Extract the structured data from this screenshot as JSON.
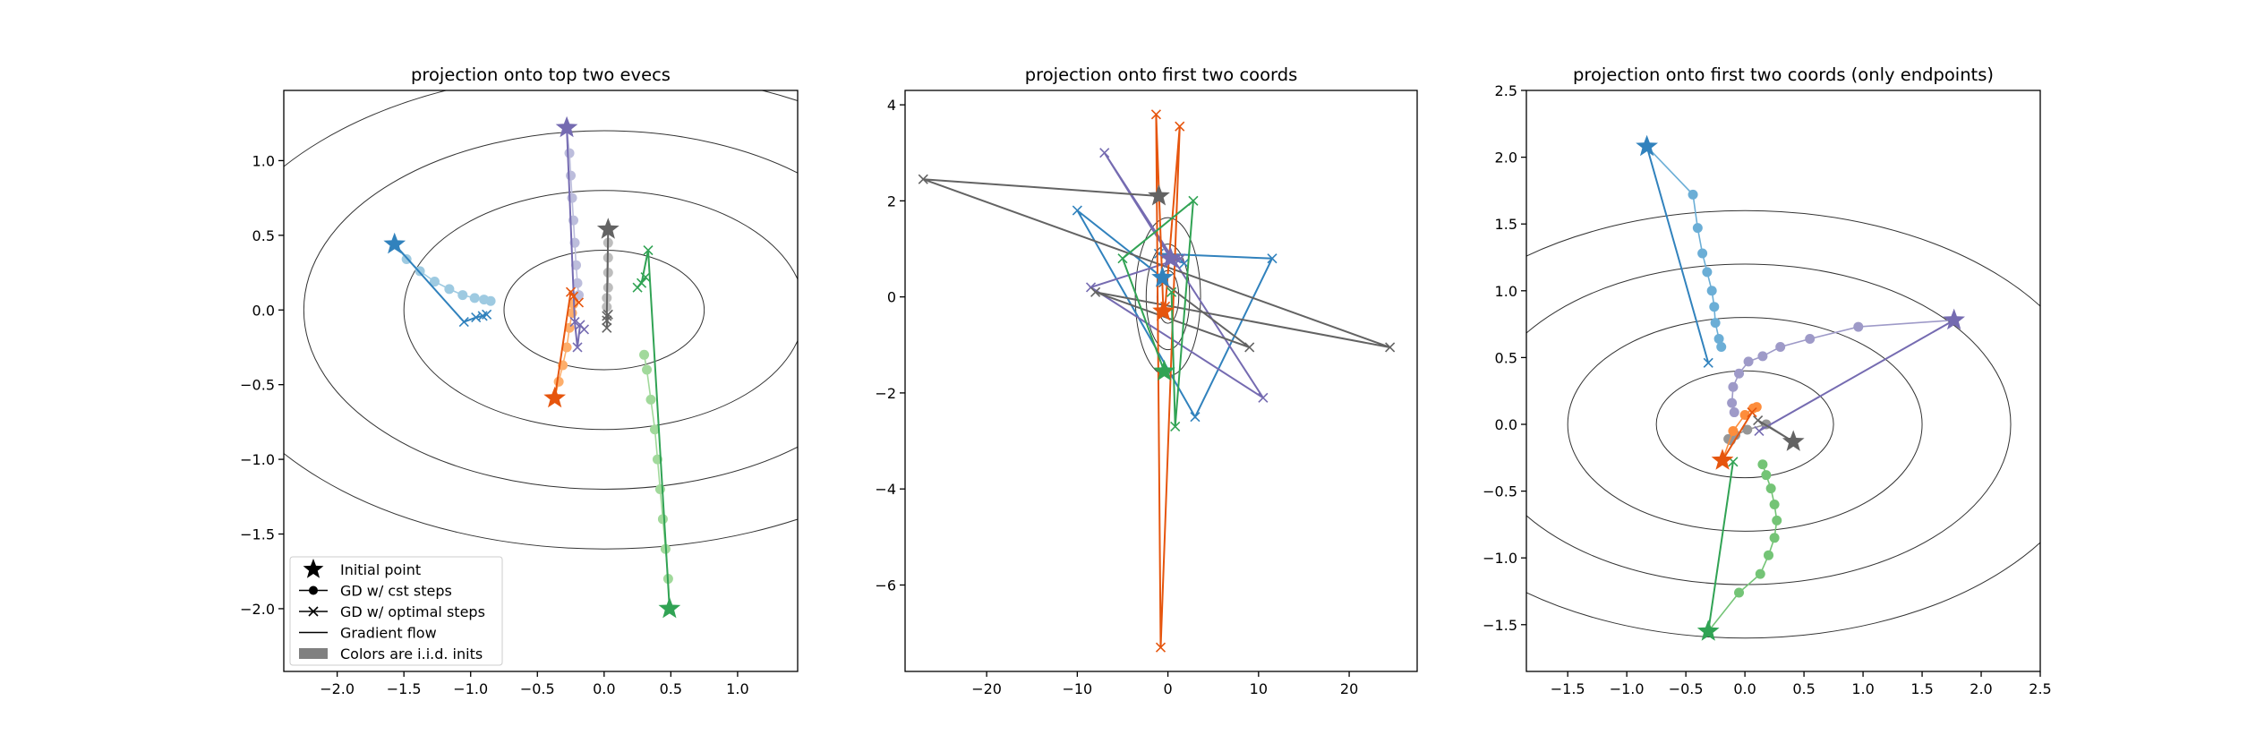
{
  "chart_data": [
    {
      "type": "line",
      "title": "projection onto top two evecs",
      "xlim": [
        -2.4,
        1.45
      ],
      "ylim": [
        -2.42,
        1.47
      ],
      "xticks": [
        -2.0,
        -1.5,
        -1.0,
        -0.5,
        0.0,
        0.5,
        1.0
      ],
      "xtick_labels": [
        "−2.0",
        "−1.5",
        "−1.0",
        "−0.5",
        "0.0",
        "0.5",
        "1.0"
      ],
      "yticks": [
        -2.0,
        -1.5,
        -1.0,
        -0.5,
        0.0,
        0.5,
        1.0
      ],
      "ytick_labels": [
        "−2.0",
        "−1.5",
        "−1.0",
        "−0.5",
        "0.0",
        "0.5",
        "1.0"
      ],
      "contours": [
        [
          0.75,
          0.4
        ],
        [
          1.5,
          0.8
        ],
        [
          2.25,
          1.2
        ],
        [
          3.0,
          1.6
        ]
      ],
      "legend": {
        "position": "lower-left",
        "entries": [
          {
            "label": "Initial point",
            "marker": "star"
          },
          {
            "label": "GD w/ cst steps",
            "marker": "circle-line"
          },
          {
            "label": "GD w/ optimal steps",
            "marker": "x-line"
          },
          {
            "label": "Gradient flow",
            "marker": "line"
          },
          {
            "label": "Colors are i.i.d. inits",
            "marker": "patch"
          }
        ]
      },
      "series": [
        {
          "color_dark": "#3182bd",
          "color_light": "#9ecae1",
          "start": [
            -1.57,
            0.44
          ],
          "cst": [
            [
              -1.57,
              0.44
            ],
            [
              -1.48,
              0.34
            ],
            [
              -1.38,
              0.26
            ],
            [
              -1.27,
              0.19
            ],
            [
              -1.16,
              0.14
            ],
            [
              -1.06,
              0.1
            ],
            [
              -0.97,
              0.08
            ],
            [
              -0.9,
              0.07
            ],
            [
              -0.85,
              0.06
            ]
          ],
          "opt": [
            [
              -1.57,
              0.44
            ],
            [
              -1.05,
              -0.08
            ],
            [
              -0.96,
              -0.05
            ],
            [
              -0.91,
              -0.04
            ],
            [
              -0.88,
              -0.03
            ]
          ]
        },
        {
          "color_dark": "#756bb1",
          "color_light": "#bcbddc",
          "start": [
            -0.28,
            1.22
          ],
          "cst": [
            [
              -0.28,
              1.22
            ],
            [
              -0.26,
              1.05
            ],
            [
              -0.25,
              0.9
            ],
            [
              -0.24,
              0.75
            ],
            [
              -0.23,
              0.6
            ],
            [
              -0.22,
              0.45
            ],
            [
              -0.21,
              0.3
            ],
            [
              -0.2,
              0.18
            ],
            [
              -0.19,
              0.1
            ]
          ],
          "opt": [
            [
              -0.28,
              1.22
            ],
            [
              -0.22,
              -0.08
            ],
            [
              -0.2,
              -0.25
            ],
            [
              -0.18,
              -0.1
            ],
            [
              -0.15,
              -0.13
            ]
          ]
        },
        {
          "color_dark": "#636363",
          "color_light": "#bdbdbd",
          "start": [
            0.03,
            0.54
          ],
          "cst": [
            [
              0.03,
              0.54
            ],
            [
              0.03,
              0.45
            ],
            [
              0.03,
              0.35
            ],
            [
              0.03,
              0.25
            ],
            [
              0.03,
              0.15
            ],
            [
              0.02,
              0.08
            ],
            [
              0.02,
              0.02
            ]
          ],
          "opt": [
            [
              0.03,
              0.54
            ],
            [
              0.02,
              -0.04
            ],
            [
              0.02,
              -0.12
            ],
            [
              0.03,
              -0.03
            ],
            [
              0.02,
              -0.07
            ]
          ]
        },
        {
          "color_dark": "#e6550d",
          "color_light": "#fdae6b",
          "start": [
            -0.37,
            -0.59
          ],
          "cst": [
            [
              -0.37,
              -0.59
            ],
            [
              -0.34,
              -0.48
            ],
            [
              -0.31,
              -0.37
            ],
            [
              -0.28,
              -0.25
            ],
            [
              -0.26,
              -0.12
            ],
            [
              -0.24,
              -0.02
            ],
            [
              -0.23,
              0.04
            ]
          ],
          "opt": [
            [
              -0.37,
              -0.59
            ],
            [
              -0.25,
              0.12
            ],
            [
              -0.19,
              0.05
            ],
            [
              -0.23,
              0.09
            ]
          ]
        },
        {
          "color_dark": "#31a354",
          "color_light": "#a1d99b",
          "start": [
            0.49,
            -2.0
          ],
          "cst": [
            [
              0.49,
              -2.0
            ],
            [
              0.48,
              -1.8
            ],
            [
              0.46,
              -1.6
            ],
            [
              0.44,
              -1.4
            ],
            [
              0.42,
              -1.2
            ],
            [
              0.4,
              -1.0
            ],
            [
              0.38,
              -0.8
            ],
            [
              0.35,
              -0.6
            ],
            [
              0.32,
              -0.4
            ],
            [
              0.3,
              -0.3
            ]
          ],
          "opt": [
            [
              0.49,
              -2.0
            ],
            [
              0.33,
              0.4
            ],
            [
              0.28,
              0.18
            ],
            [
              0.25,
              0.15
            ],
            [
              0.31,
              0.22
            ]
          ]
        }
      ]
    },
    {
      "type": "line",
      "title": "projection onto first two coords",
      "xlim": [
        -29,
        27.5
      ],
      "ylim": [
        -7.8,
        4.3
      ],
      "xticks": [
        -20,
        -10,
        0,
        10,
        20
      ],
      "xtick_labels": [
        "−20",
        "−10",
        "0",
        "10",
        "20"
      ],
      "yticks": [
        -6,
        -4,
        -2,
        0,
        2,
        4
      ],
      "ytick_labels": [
        "−6",
        "−4",
        "−2",
        "0",
        "2",
        "4"
      ],
      "contours": [
        [
          1.2,
          0.55
        ],
        [
          2.4,
          1.1
        ],
        [
          3.6,
          1.65
        ]
      ],
      "series": [
        {
          "color_dark": "#3182bd",
          "start": [
            -0.6,
            0.4
          ],
          "opt": [
            [
              -0.6,
              0.4
            ],
            [
              -10,
              1.8
            ],
            [
              3,
              -2.5
            ],
            [
              11.5,
              0.8
            ],
            [
              -1,
              0.9
            ],
            [
              1.8,
              0.7
            ]
          ]
        },
        {
          "color_dark": "#756bb1",
          "start": [
            0.3,
            0.8
          ],
          "opt": [
            [
              0.3,
              0.8
            ],
            [
              -7,
              3.0
            ],
            [
              10.5,
              -2.1
            ],
            [
              -8.5,
              0.2
            ],
            [
              1.4,
              0.8
            ],
            [
              0.9,
              0.8
            ]
          ]
        },
        {
          "color_dark": "#636363",
          "start": [
            -1.0,
            2.1
          ],
          "opt": [
            [
              -1.0,
              2.1
            ],
            [
              -27,
              2.45
            ],
            [
              24.5,
              -1.05
            ],
            [
              -8,
              0.1
            ],
            [
              9,
              -1.05
            ],
            [
              -0.5,
              0.3
            ]
          ]
        },
        {
          "color_dark": "#e6550d",
          "start": [
            -0.5,
            -0.3
          ],
          "opt": [
            [
              -0.5,
              -0.3
            ],
            [
              -1.3,
              3.8
            ],
            [
              -0.8,
              -7.3
            ],
            [
              1.3,
              3.55
            ],
            [
              -0.3,
              -0.2
            ]
          ]
        },
        {
          "color_dark": "#31a354",
          "start": [
            -0.4,
            -1.55
          ],
          "opt": [
            [
              -0.4,
              -1.55
            ],
            [
              -5,
              0.8
            ],
            [
              2.8,
              2.0
            ],
            [
              0.8,
              -2.7
            ],
            [
              0.4,
              0.1
            ]
          ]
        }
      ]
    },
    {
      "type": "line",
      "title": "projection onto first two coords (only endpoints)",
      "xlim": [
        -1.85,
        2.5
      ],
      "ylim": [
        -1.85,
        2.5
      ],
      "xticks": [
        -1.5,
        -1.0,
        -0.5,
        0.0,
        0.5,
        1.0,
        1.5,
        2.0,
        2.5
      ],
      "xtick_labels": [
        "−1.5",
        "−1.0",
        "−0.5",
        "0.0",
        "0.5",
        "1.0",
        "1.5",
        "2.0",
        "2.5"
      ],
      "yticks": [
        -1.5,
        -1.0,
        -0.5,
        0.0,
        0.5,
        1.0,
        1.5,
        2.0,
        2.5
      ],
      "ytick_labels": [
        "−1.5",
        "−1.0",
        "−0.5",
        "0.0",
        "0.5",
        "1.0",
        "1.5",
        "2.0",
        "2.5"
      ],
      "contours": [
        [
          0.75,
          0.4
        ],
        [
          1.5,
          0.8
        ],
        [
          2.25,
          1.2
        ],
        [
          3.0,
          1.6
        ]
      ],
      "series": [
        {
          "color_dark": "#3182bd",
          "color_light": "#6baed6",
          "start": [
            -0.83,
            2.08
          ],
          "cst": [
            [
              -0.83,
              2.08
            ],
            [
              -0.44,
              1.72
            ],
            [
              -0.4,
              1.47
            ],
            [
              -0.36,
              1.28
            ],
            [
              -0.32,
              1.14
            ],
            [
              -0.28,
              1.0
            ],
            [
              -0.26,
              0.88
            ],
            [
              -0.25,
              0.76
            ],
            [
              -0.22,
              0.64
            ],
            [
              -0.2,
              0.58
            ]
          ],
          "opt": [
            [
              -0.83,
              2.08
            ],
            [
              -0.31,
              0.46
            ]
          ]
        },
        {
          "color_dark": "#756bb1",
          "color_light": "#9e9ac8",
          "start": [
            1.77,
            0.78
          ],
          "cst": [
            [
              1.77,
              0.78
            ],
            [
              0.96,
              0.73
            ],
            [
              0.55,
              0.64
            ],
            [
              0.3,
              0.58
            ],
            [
              0.15,
              0.51
            ],
            [
              0.03,
              0.47
            ],
            [
              -0.05,
              0.38
            ],
            [
              -0.1,
              0.28
            ],
            [
              -0.11,
              0.16
            ],
            [
              -0.09,
              0.09
            ]
          ],
          "opt": [
            [
              1.77,
              0.78
            ],
            [
              0.12,
              -0.05
            ]
          ]
        },
        {
          "color_dark": "#636363",
          "color_light": "#969696",
          "start": [
            0.41,
            -0.13
          ],
          "cst": [
            [
              0.41,
              -0.13
            ],
            [
              0.18,
              0.0
            ],
            [
              0.02,
              -0.04
            ],
            [
              -0.08,
              -0.08
            ],
            [
              -0.14,
              -0.11
            ],
            [
              -0.12,
              -0.12
            ]
          ],
          "opt": [
            [
              0.41,
              -0.13
            ],
            [
              0.11,
              0.03
            ]
          ]
        },
        {
          "color_dark": "#e6550d",
          "color_light": "#fd8d3c",
          "start": [
            -0.19,
            -0.27
          ],
          "cst": [
            [
              -0.19,
              -0.27
            ],
            [
              -0.1,
              -0.05
            ],
            [
              0.0,
              0.07
            ],
            [
              0.07,
              0.12
            ],
            [
              0.1,
              0.13
            ]
          ],
          "opt": [
            [
              -0.19,
              -0.27
            ],
            [
              0.06,
              0.09
            ]
          ]
        },
        {
          "color_dark": "#31a354",
          "color_light": "#74c476",
          "start": [
            -0.31,
            -1.55
          ],
          "cst": [
            [
              -0.31,
              -1.55
            ],
            [
              -0.05,
              -1.26
            ],
            [
              0.13,
              -1.12
            ],
            [
              0.2,
              -0.98
            ],
            [
              0.25,
              -0.85
            ],
            [
              0.27,
              -0.72
            ],
            [
              0.25,
              -0.6
            ],
            [
              0.22,
              -0.48
            ],
            [
              0.18,
              -0.38
            ],
            [
              0.15,
              -0.3
            ]
          ],
          "opt": [
            [
              -0.31,
              -1.55
            ],
            [
              -0.1,
              -0.28
            ]
          ]
        }
      ]
    }
  ]
}
